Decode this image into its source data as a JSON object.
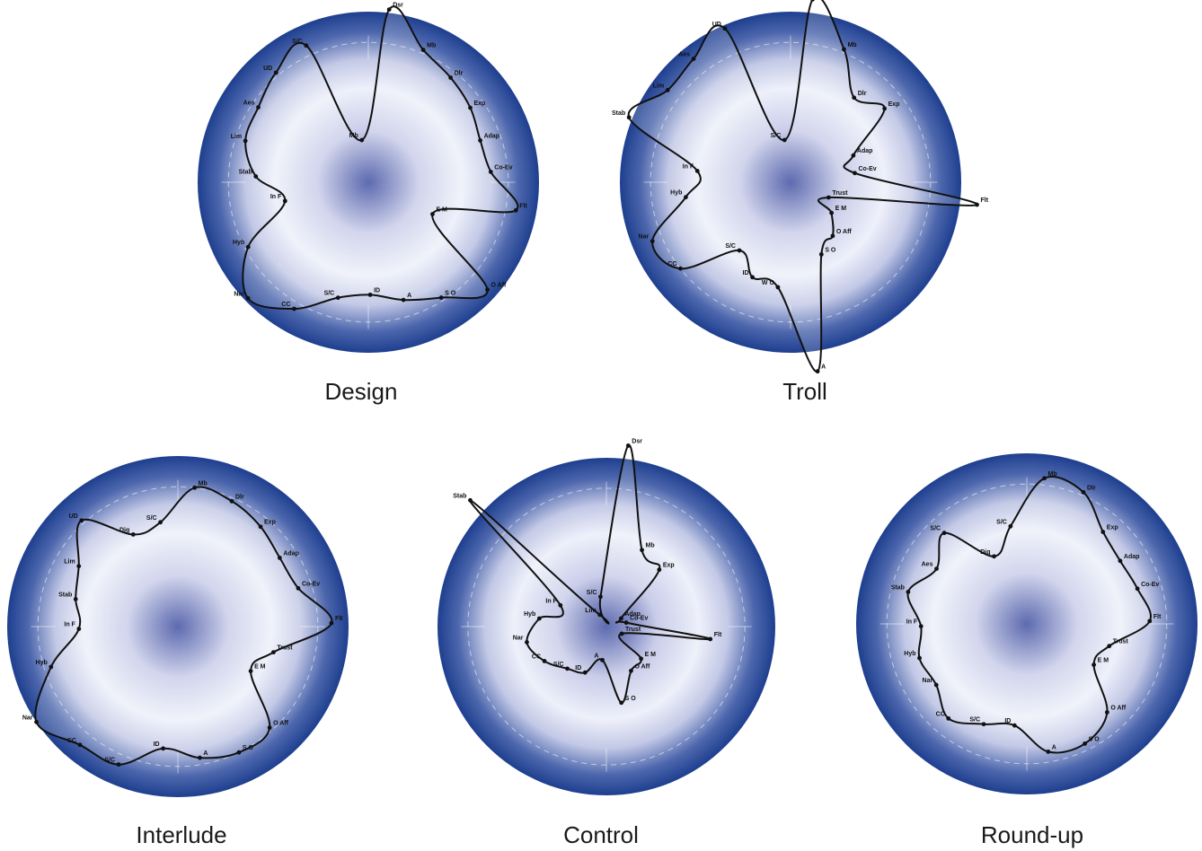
{
  "colors": {
    "disc_edge": "#1e3f8f",
    "disc_mid": "#eef0fa",
    "disc_center": "#3a4a9e",
    "curve": "#111111",
    "caption": "#1a1a1a"
  },
  "panels": [
    {
      "caption": "Design",
      "points": [
        {
          "label": "Dsr",
          "r": 1.02
        },
        {
          "label": "Mb",
          "r": 0.84
        },
        {
          "label": "Dlr",
          "r": 0.78
        },
        {
          "label": "Exp",
          "r": 0.74
        },
        {
          "label": "Adap",
          "r": 0.7
        },
        {
          "label": "Co-Ev",
          "r": 0.72
        },
        {
          "label": "Flt",
          "r": 0.88
        },
        {
          "label": "E M",
          "r": 0.42
        },
        {
          "label": "O Aff",
          "r": 0.94
        },
        {
          "label": "S O",
          "r": 0.8
        },
        {
          "label": "A",
          "r": 0.72
        },
        {
          "label": "ID",
          "r": 0.66
        },
        {
          "label": "S/C",
          "r": 0.7
        },
        {
          "label": "CC",
          "r": 0.86
        },
        {
          "label": "Nar",
          "r": 0.98
        },
        {
          "label": "Hyb",
          "r": 0.8
        },
        {
          "label": "In F",
          "r": 0.5
        },
        {
          "label": "Stab",
          "r": 0.66
        },
        {
          "label": "Lim",
          "r": 0.76
        },
        {
          "label": "Aes",
          "r": 0.78
        },
        {
          "label": "UD",
          "r": 0.84
        },
        {
          "label": "S/C",
          "r": 0.88
        },
        {
          "label": "Mb",
          "r": 0.25
        }
      ]
    },
    {
      "caption": "Troll",
      "points": [
        {
          "label": "Dsr",
          "r": 1.08
        },
        {
          "label": "Mb",
          "r": 0.84
        },
        {
          "label": "Dlr",
          "r": 0.62
        },
        {
          "label": "Exp",
          "r": 0.7
        },
        {
          "label": "Adap",
          "r": 0.4
        },
        {
          "label": "Co-Ev",
          "r": 0.38
        },
        {
          "label": "Flt",
          "r": 1.1
        },
        {
          "label": "Trust",
          "r": 0.24
        },
        {
          "label": "E M",
          "r": 0.3
        },
        {
          "label": "O Aff",
          "r": 0.4
        },
        {
          "label": "S O",
          "r": 0.46
        },
        {
          "label": "A",
          "r": 1.12
        },
        {
          "label": "W O",
          "r": 0.62
        },
        {
          "label": "ID",
          "r": 0.6
        },
        {
          "label": "S/C",
          "r": 0.5
        },
        {
          "label": "CC",
          "r": 0.82
        },
        {
          "label": "Nar",
          "r": 0.88
        },
        {
          "label": "Hyb",
          "r": 0.62
        },
        {
          "label": "In F",
          "r": 0.55
        },
        {
          "label": "Stab",
          "r": 1.02
        },
        {
          "label": "Lim",
          "r": 0.9
        },
        {
          "label": "Aes",
          "r": 0.92
        },
        {
          "label": "UD",
          "r": 0.98
        },
        {
          "label": "S/C",
          "r": 0.25
        }
      ]
    },
    {
      "caption": "Interlude",
      "points": [
        {
          "label": "Mb",
          "r": 0.82
        },
        {
          "label": "Dlr",
          "r": 0.8
        },
        {
          "label": "Exp",
          "r": 0.76
        },
        {
          "label": "Adap",
          "r": 0.72
        },
        {
          "label": "Co-Ev",
          "r": 0.74
        },
        {
          "label": "Flt",
          "r": 0.9
        },
        {
          "label": "Trust",
          "r": 0.58
        },
        {
          "label": "E M",
          "r": 0.5
        },
        {
          "label": "O Aff",
          "r": 0.8
        },
        {
          "label": "S O",
          "r": 0.82
        },
        {
          "label": "A",
          "r": 0.78
        },
        {
          "label": "ID",
          "r": 0.72
        },
        {
          "label": "S/C",
          "r": 0.88
        },
        {
          "label": "CC",
          "r": 0.9
        },
        {
          "label": "Nar",
          "r": 1.0
        },
        {
          "label": "Hyb",
          "r": 0.78
        },
        {
          "label": "In F",
          "r": 0.58
        },
        {
          "label": "Stab",
          "r": 0.62
        },
        {
          "label": "Lim",
          "r": 0.68
        },
        {
          "label": "UD",
          "r": 0.84
        },
        {
          "label": "Dig",
          "r": 0.6
        },
        {
          "label": "S/C",
          "r": 0.62
        }
      ]
    },
    {
      "caption": "Control",
      "points": [
        {
          "label": "Dsr",
          "r": 1.08
        },
        {
          "label": "Mb",
          "r": 0.5
        },
        {
          "label": "Exp",
          "r": 0.46
        },
        {
          "label": "Adap",
          "r": 0.1
        },
        {
          "label": "Co-Ev",
          "r": 0.12
        },
        {
          "label": "Flt",
          "r": 0.62
        },
        {
          "label": "Trust",
          "r": 0.1
        },
        {
          "label": "E M",
          "r": 0.28
        },
        {
          "label": "O Aff",
          "r": 0.3
        },
        {
          "label": "S O",
          "r": 0.46
        },
        {
          "label": "A",
          "r": 0.2
        },
        {
          "label": "ID",
          "r": 0.3
        },
        {
          "label": "S/C",
          "r": 0.34
        },
        {
          "label": "CC",
          "r": 0.42
        },
        {
          "label": "Nar",
          "r": 0.48
        },
        {
          "label": "Hyb",
          "r": 0.4
        },
        {
          "label": "In F",
          "r": 0.3
        },
        {
          "label": "Stab",
          "r": 1.1
        },
        {
          "label": "Lim",
          "r": 0.08
        },
        {
          "label": "S/C",
          "r": 0.18
        }
      ]
    },
    {
      "caption": "Round-up",
      "points": [
        {
          "label": "Mb",
          "r": 0.86
        },
        {
          "label": "Dlr",
          "r": 0.84
        },
        {
          "label": "Exp",
          "r": 0.7
        },
        {
          "label": "Adap",
          "r": 0.66
        },
        {
          "label": "Co-Ev",
          "r": 0.68
        },
        {
          "label": "Flt",
          "r": 0.72
        },
        {
          "label": "Trust",
          "r": 0.5
        },
        {
          "label": "E M",
          "r": 0.46
        },
        {
          "label": "O Aff",
          "r": 0.7
        },
        {
          "label": "S O",
          "r": 0.78
        },
        {
          "label": "A",
          "r": 0.76
        },
        {
          "label": "ID",
          "r": 0.6
        },
        {
          "label": "S/C",
          "r": 0.64
        },
        {
          "label": "CC",
          "r": 0.72
        },
        {
          "label": "Nar",
          "r": 0.64
        },
        {
          "label": "Hyb",
          "r": 0.66
        },
        {
          "label": "In F",
          "r": 0.62
        },
        {
          "label": "Stab",
          "r": 0.72
        },
        {
          "label": "Aes",
          "r": 0.62
        },
        {
          "label": "S/C",
          "r": 0.72
        },
        {
          "label": "Dig",
          "r": 0.44
        },
        {
          "label": "S/C",
          "r": 0.58
        }
      ]
    }
  ]
}
